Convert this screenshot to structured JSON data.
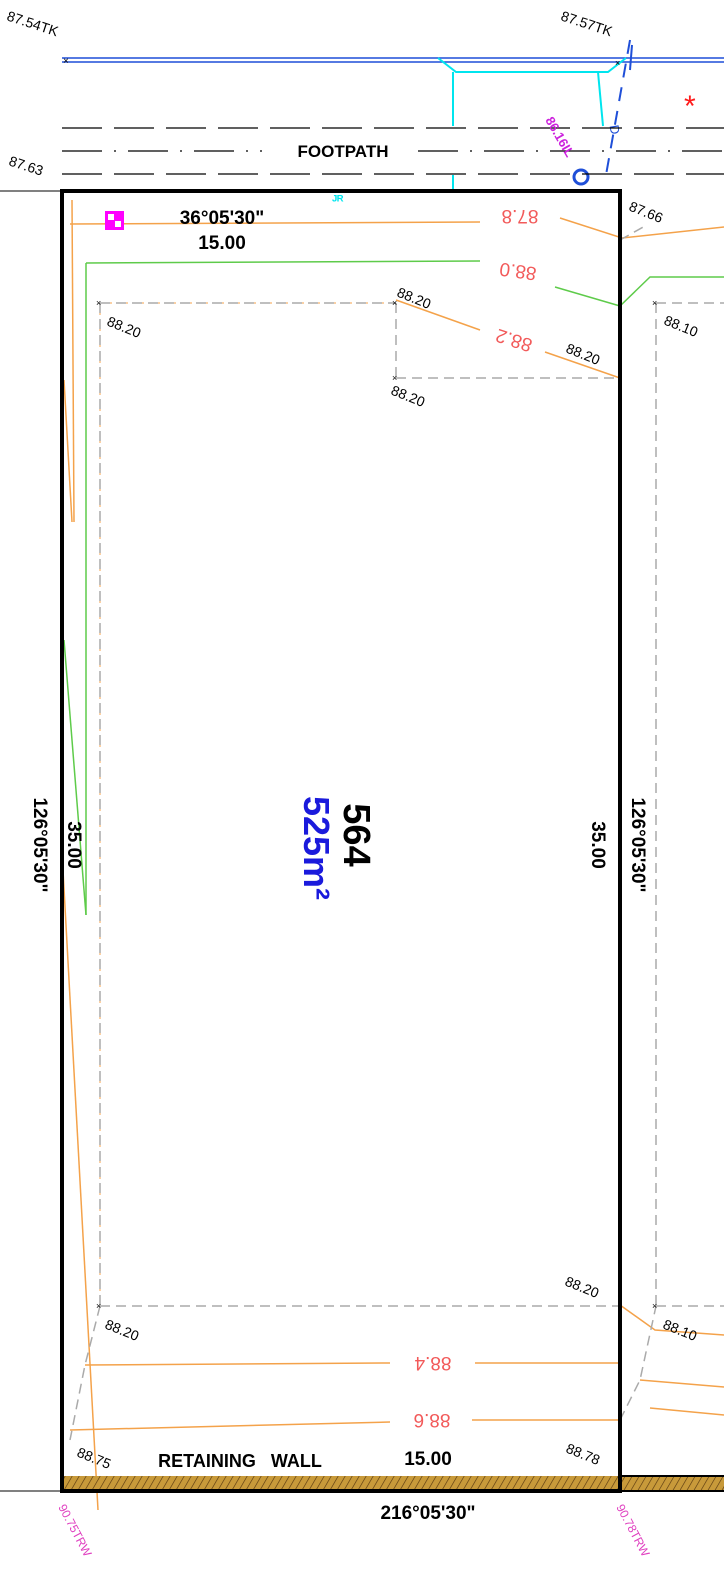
{
  "lot": {
    "number": "564",
    "area": "525m²"
  },
  "boundary": {
    "top_bearing": "36°05'30\"",
    "top_distance": "15.00",
    "bottom_bearing": "216°05'30\"",
    "bottom_distance": "15.00",
    "left_bearing": "126°05'30\"",
    "left_distance": "35.00",
    "right_bearing": "126°05'30\"",
    "right_distance": "35.00"
  },
  "labels": {
    "footpath": "FOOTPATH",
    "retaining_wall": "RETAINING   WALL",
    "invert_level": "86.16IL",
    "sewer_mark": "D",
    "service_mark": "ᴶᴿ"
  },
  "spot_levels": {
    "tk_left": "87.54TK",
    "tk_right": "87.57TK",
    "top_left_corner": "87.63",
    "top_right_corner": "87.66",
    "pad_top_left": "88.20",
    "pad_top_mid": "88.20",
    "pad_inner_corner": "88.20",
    "pad_right_top": "88.20",
    "right_outside_top": "88.10",
    "pad_bottom_right": "88.20",
    "pad_bottom_left": "88.20",
    "right_outside_bottom": "88.10",
    "bottom_left_corner": "88.75",
    "bottom_right_corner": "88.78",
    "trw_left": "90.75TRW",
    "trw_right": "90.78TRW"
  },
  "contours": {
    "c878": "87.8",
    "c880": "88.0",
    "c882": "88.2",
    "c884": "88.4",
    "c886": "88.6"
  },
  "colors": {
    "boundary": "#000000",
    "contour_orange": "#f4a24a",
    "contour_green": "#5ecb4a",
    "contour_label": "#f25a5a",
    "kerb": "#00e5ee",
    "road_line": "#1f4fd8",
    "invert": "#cc22dd",
    "area_text": "#1a1adc",
    "trw_text": "#e040c0"
  }
}
